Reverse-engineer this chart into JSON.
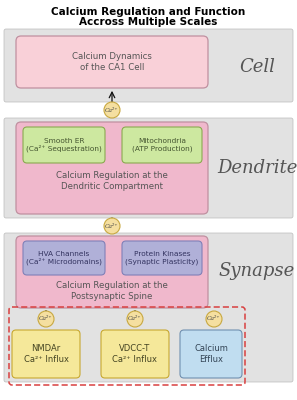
{
  "title_line1": "Calcium Regulation and Function",
  "title_line2": "Accross Multiple Scales",
  "figure_bg": "#ffffff",
  "section_bg": "#e2e2e2",
  "cell_box_color": "#f9d0d8",
  "cell_box_text": "Calcium Dynamics\nof the CA1 Cell",
  "cell_label": "Cell",
  "dendrite_outer_color": "#f0b8cc",
  "dendrite_inner_color": "#cde8a0",
  "dendrite_inner_left_text": "Smooth ER\n(Ca²⁺ Sequestration)",
  "dendrite_inner_right_text": "Mitochondria\n(ATP Production)",
  "dendrite_center_text": "Calcium Regulation at the\nDendritic Compartment",
  "dendrite_label": "Dendrite",
  "synapse_outer_color": "#f0b8cc",
  "synapse_inner_color": "#b0b0d8",
  "synapse_inner_left_text": "HVA Channels\n(Ca²⁺ Microdomains)",
  "synapse_inner_right_text": "Protein Kinases\n(Synaptic Plasticity)",
  "synapse_center_text": "Calcium Regulation at the\nPostsynaptic Spine",
  "synapse_label": "Synapse",
  "bottom_yellow_color": "#f5e89a",
  "bottom_yellow_edge": "#c8a830",
  "bottom_left_text": "NMDAr\nCa²⁺ Influx",
  "bottom_mid_text": "VDCC-T\nCa²⁺ Influx",
  "bottom_blue_color": "#c0ddf0",
  "bottom_blue_edge": "#7090b0",
  "bottom_right_text": "Calcium\nEfflux",
  "ca_circle_color": "#f5dfa0",
  "ca_circle_edge": "#c8a840",
  "ca_text": "Ca²⁺",
  "dashed_box_color": "#d84040",
  "section_edge": "#bbbbbb",
  "outer_box_edge": "#c090a0",
  "green_box_edge": "#8aaa50",
  "purple_box_edge": "#8080b8",
  "label_color": "#555555",
  "text_color": "#555555",
  "inner_green_text": "#445530",
  "inner_purple_text": "#333360"
}
